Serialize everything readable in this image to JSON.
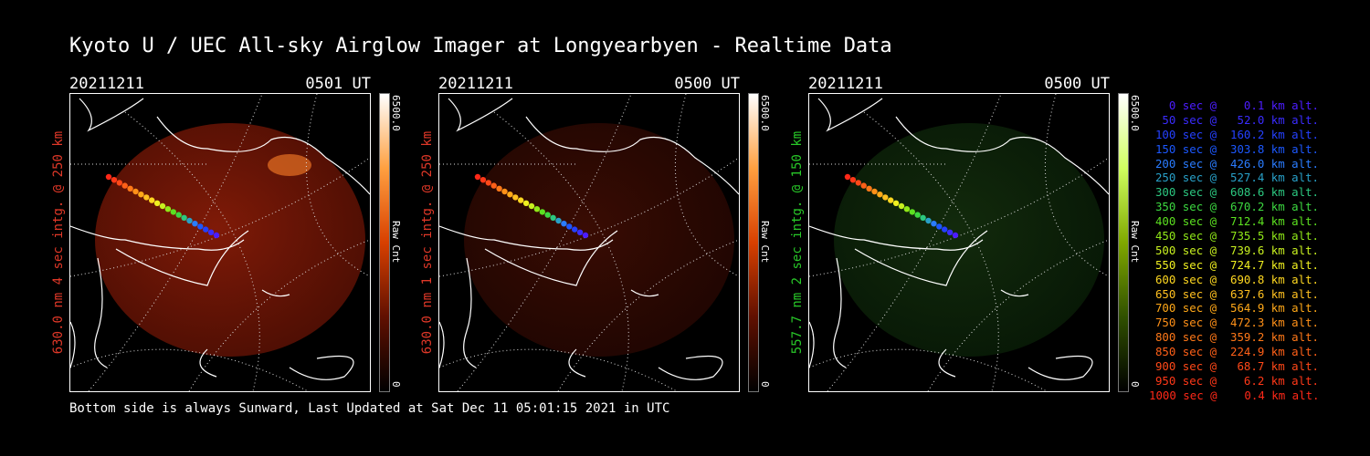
{
  "title": "Kyoto U / UEC All-sky Airglow Imager at Longyearbyen - Realtime Data",
  "footer": "Bottom side is always Sunward, Last Updated at Sat Dec 11 05:01:15 2021 in UTC",
  "panels": [
    {
      "date": "20211211",
      "time": "0501 UT",
      "ylabel": "630.0 nm 4 sec intg. @ 250 km",
      "ylabel_color": "#e03828",
      "cbar_max": "6500.0",
      "cbar_min": "0",
      "cbar_unit": "Raw Cnt",
      "colormap": "red",
      "image_intensity": 0.55
    },
    {
      "date": "20211211",
      "time": "0500 UT",
      "ylabel": "630.0 nm 1 sec intg. @ 250 km",
      "ylabel_color": "#e03828",
      "cbar_max": "6500.0",
      "cbar_min": "0",
      "cbar_unit": "Raw Cnt",
      "colormap": "red",
      "image_intensity": 0.14
    },
    {
      "date": "20211211",
      "time": "0500 UT",
      "ylabel": "557.7 nm 2 sec intg. @ 150 km",
      "ylabel_color": "#28c828",
      "cbar_max": "6500.0",
      "cbar_min": "0",
      "cbar_unit": "Raw Cnt",
      "colormap": "green",
      "image_intensity": 0.3
    }
  ],
  "legend": [
    {
      "text": "0 sec @    0.1 km alt.",
      "color": "#4c1cff"
    },
    {
      "text": "50 sec @   52.0 km alt.",
      "color": "#3a2cff"
    },
    {
      "text": "100 sec @  160.2 km alt.",
      "color": "#2440ff"
    },
    {
      "text": "150 sec @  303.8 km alt.",
      "color": "#1c58ff"
    },
    {
      "text": "200 sec @  426.0 km alt.",
      "color": "#2a7cff"
    },
    {
      "text": "250 sec @  527.4 km alt.",
      "color": "#28a0c8"
    },
    {
      "text": "300 sec @  608.6 km alt.",
      "color": "#2cc880"
    },
    {
      "text": "350 sec @  670.2 km alt.",
      "color": "#3cd840"
    },
    {
      "text": "400 sec @  712.4 km alt.",
      "color": "#5ce020"
    },
    {
      "text": "450 sec @  735.5 km alt.",
      "color": "#90e818"
    },
    {
      "text": "500 sec @  739.6 km alt.",
      "color": "#c8f020"
    },
    {
      "text": "550 sec @  724.7 km alt.",
      "color": "#f0f020"
    },
    {
      "text": "600 sec @  690.8 km alt.",
      "color": "#ffd820"
    },
    {
      "text": "650 sec @  637.6 km alt.",
      "color": "#ffc020"
    },
    {
      "text": "700 sec @  564.9 km alt.",
      "color": "#ffa818"
    },
    {
      "text": "750 sec @  472.3 km alt.",
      "color": "#ff9018"
    },
    {
      "text": "800 sec @  359.2 km alt.",
      "color": "#ff7818"
    },
    {
      "text": "850 sec @  224.9 km alt.",
      "color": "#ff6018"
    },
    {
      "text": "900 sec @   68.7 km alt.",
      "color": "#ff4818"
    },
    {
      "text": "950 sec @    6.2 km alt.",
      "color": "#ff3818"
    },
    {
      "text": "1000 sec @    0.4 km alt.",
      "color": "#ff2818"
    }
  ]
}
